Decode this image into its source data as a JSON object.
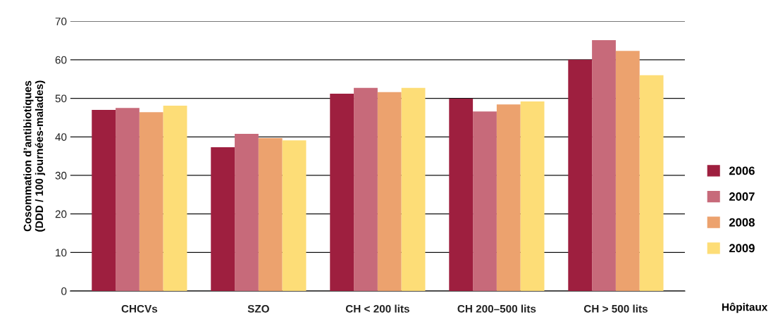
{
  "chart_data": {
    "type": "bar",
    "categories": [
      "CHCVs",
      "SZO",
      "CH < 200 lits",
      "CH 200–500 lits",
      "CH > 500 lits"
    ],
    "xlabel": "Hôpitaux",
    "ylabel": "Cosommation d’antibiotiques\n(DDD / 100 journées-malades)",
    "ylim": [
      0,
      70
    ],
    "yticks": [
      0,
      10,
      20,
      30,
      40,
      50,
      60,
      70
    ],
    "grid": "y",
    "legend": "right",
    "series": [
      {
        "name": "2006",
        "color": "#9e1f3f",
        "values": [
          47.0,
          37.3,
          51.2,
          49.9,
          60.0
        ]
      },
      {
        "name": "2007",
        "color": "#c76a7a",
        "values": [
          47.5,
          40.8,
          52.7,
          46.6,
          65.1
        ]
      },
      {
        "name": "2008",
        "color": "#eca26e",
        "values": [
          46.4,
          39.7,
          51.6,
          48.4,
          62.3
        ]
      },
      {
        "name": "2009",
        "color": "#fddd77",
        "values": [
          48.1,
          39.1,
          52.7,
          49.2,
          56.0
        ]
      }
    ]
  }
}
